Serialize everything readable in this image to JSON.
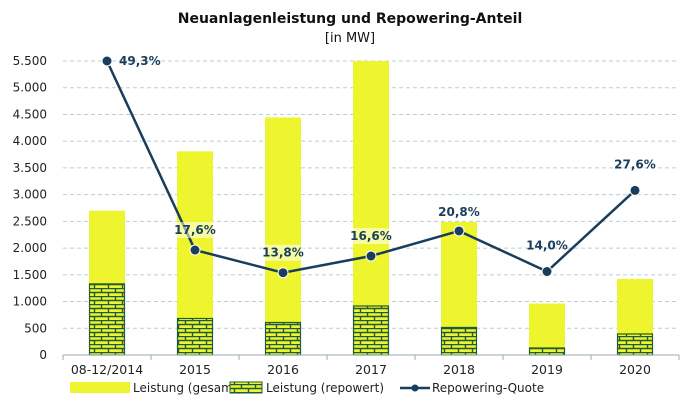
{
  "chart_data": {
    "type": "bar",
    "title": "Neuanlagenleistung und Repowering-Anteil",
    "subtitle": "[in MW]",
    "xlabel": "",
    "ylabel": "",
    "categories": [
      "08-12/2014",
      "2015",
      "2016",
      "2017",
      "2018",
      "2019",
      "2020"
    ],
    "ylim": [
      0,
      5500
    ],
    "yticks": [
      0,
      500,
      1000,
      1500,
      2000,
      2500,
      3000,
      3500,
      4000,
      4500,
      5000,
      5500
    ],
    "ytick_labels": [
      "0",
      "500",
      "1.000",
      "1.500",
      "2.000",
      "2.500",
      "3.000",
      "3.500",
      "4.000",
      "4.500",
      "5.000",
      "5.500"
    ],
    "grid": true,
    "series": [
      {
        "name": "Leistung (gesamt)",
        "type": "bar",
        "color": "#eef52f",
        "values": [
          2700,
          3810,
          4445,
          5500,
          2490,
          963,
          1422
        ]
      },
      {
        "name": "Leistung (repowert)",
        "type": "bar",
        "pattern": "brick",
        "color": "#eef52f",
        "pattern_color": "#1f5a3a",
        "values": [
          1330,
          683,
          608,
          917,
          515,
          131,
          393
        ]
      },
      {
        "name": "Repowering-Quote",
        "type": "line",
        "color": "#1a3d5c",
        "axis": "secondary",
        "unit": "%",
        "values": [
          49.3,
          17.6,
          13.8,
          16.6,
          20.8,
          14.0,
          27.6
        ],
        "labels": [
          "49,3%",
          "17,6%",
          "13,8%",
          "16,6%",
          "20,8%",
          "14,0%",
          "27,6%"
        ]
      }
    ],
    "secondary_ylim": [
      0,
      49.3
    ],
    "legend": {
      "position": "bottom",
      "entries": [
        "Leistung (gesamt)",
        "Leistung (repowert)",
        "Repowering-Quote"
      ]
    }
  }
}
